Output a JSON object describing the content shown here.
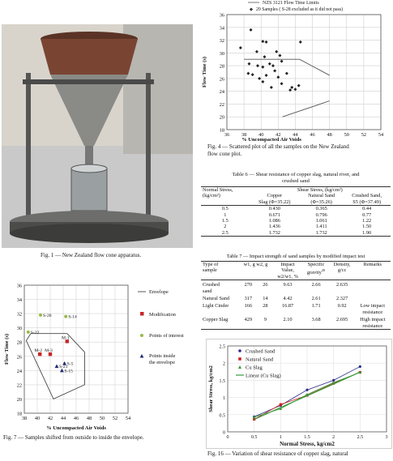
{
  "fig1": {
    "caption": "Fig. 1 — New Zealand flow cone apparatus."
  },
  "fig4": {
    "caption_line1": "Fig. 4 — Scattered plot of all the samples on the New Zealand",
    "caption_line2": "flow cone plot."
  },
  "fig7": {
    "caption": "Fig. 7 — Samples shifted from outside to inside the envelope."
  },
  "fig16": {
    "caption": "Fig. 16 — Variation of shear resistance of copper slag, natural"
  },
  "table6": {
    "title_line1": "Table 6 — Shear resistance of copper slag, natural river, and",
    "title_line2": "crushed sand",
    "col_normal": "Normal Stress,",
    "col_normal_unit": "(kg/cm²)",
    "col_group": "Shear Stress, (kg/cm²)",
    "col_copper": "Copper",
    "col_copper2": "Slag (Φ=35.22)",
    "col_natural": "Natural Sand",
    "col_natural2": "(Φ=35.26)",
    "col_crushed": "Crushed Sand,",
    "col_crushed2": "S5 (Φ=37.49)",
    "rows": [
      [
        "0.5",
        "0.430",
        "0.365",
        "0.44"
      ],
      [
        "1",
        "0.671",
        "0.796",
        "0.77"
      ],
      [
        "1.5",
        "1.086",
        "1.061",
        "1.22"
      ],
      [
        "2",
        "1.436",
        "1.411",
        "1.50"
      ],
      [
        "2.5",
        "1.732",
        "1.732",
        "1.90"
      ]
    ]
  },
  "table7": {
    "title": "Table 7 — Impact strength of sand samples by modified impact test",
    "h_type": "Type of",
    "h_type2": "sample",
    "h_w": "w1, g w2, g",
    "h_impact": "Impact",
    "h_impact2": "Value,",
    "h_impact3": "w2/w1, %",
    "h_sg": "Specific",
    "h_sg2": "gravity",
    "h_sg_sup": "20",
    "h_density": "Density,",
    "h_density2": "g/cc",
    "h_remarks": "Remarks",
    "rows": [
      {
        "type": "Crushed",
        "type2": "sand",
        "w1": "270",
        "w2": "26",
        "iv": "9.63",
        "sg": "2.66",
        "d": "2.635",
        "r": "",
        "r2": ""
      },
      {
        "type": "Natural Sand",
        "type2": "",
        "w1": "317",
        "w2": "14",
        "iv": "4.42",
        "sg": "2.61",
        "d": "2.327",
        "r": "",
        "r2": ""
      },
      {
        "type": "Light Cinder",
        "type2": "",
        "w1": "166",
        "w2": "28",
        "iv": "16.87",
        "sg": "1.71",
        "d": "0.92",
        "r": "Low impact",
        "r2": "resistance"
      },
      {
        "type": "Copper Slag",
        "type2": "",
        "w1": "429",
        "w2": "9",
        "iv": "2.10",
        "sg": "3.68",
        "d": "2.695",
        "r": "High impact",
        "r2": "resistance"
      }
    ]
  },
  "chart_data": [
    {
      "id": "fig4",
      "type": "scatter",
      "xlabel": "% Uncompacted Air Voids",
      "ylabel": "Flow Time (s)",
      "xlim": [
        36,
        54
      ],
      "ylim": [
        18,
        36
      ],
      "xticks": [
        "36",
        "38",
        "40",
        "42",
        "44",
        "46",
        "48",
        "50",
        "52",
        "54"
      ],
      "yticks": [
        "18",
        "20",
        "22",
        "24",
        "26",
        "28",
        "30",
        "32",
        "34",
        "36"
      ],
      "legend": [
        "NZS 3121 Flow Time Limits",
        "29 Samples ( S-28 excluded as it did not pass)"
      ],
      "envelope": {
        "upper": [
          [
            38,
            29
          ],
          [
            44.5,
            29
          ],
          [
            48,
            26.5
          ]
        ],
        "lower": [
          [
            42.5,
            20
          ],
          [
            48,
            22.5
          ]
        ]
      },
      "points": [
        [
          38.8,
          33.6
        ],
        [
          37.6,
          30.8
        ],
        [
          39.5,
          30.2
        ],
        [
          40.2,
          31.8
        ],
        [
          40.6,
          31.7
        ],
        [
          41.8,
          30.2
        ],
        [
          40.4,
          29.4
        ],
        [
          42.2,
          29.6
        ],
        [
          38.6,
          28.3
        ],
        [
          39.6,
          28.0
        ],
        [
          41.0,
          28.3
        ],
        [
          42.4,
          28.7
        ],
        [
          40.2,
          27.8
        ],
        [
          41.4,
          28.0
        ],
        [
          38.5,
          26.8
        ],
        [
          39.0,
          26.6
        ],
        [
          39.8,
          26.0
        ],
        [
          40.6,
          26.5
        ],
        [
          41.6,
          27.2
        ],
        [
          43.0,
          26.8
        ],
        [
          40.2,
          25.5
        ],
        [
          41.2,
          24.6
        ],
        [
          42.4,
          25.2
        ],
        [
          43.6,
          24.6
        ],
        [
          44.0,
          24.3
        ],
        [
          44.4,
          24.9
        ],
        [
          43.4,
          24.2
        ],
        [
          44.6,
          31.7
        ],
        [
          42.0,
          26.2
        ]
      ]
    },
    {
      "id": "fig7",
      "type": "scatter",
      "xlabel": "% Uncompacted  Air Voids",
      "ylabel": "Flow Time (s)",
      "xlim": [
        38,
        54
      ],
      "ylim": [
        18,
        36
      ],
      "xticks": [
        "38",
        "40",
        "42",
        "44",
        "46",
        "48",
        "50",
        "52",
        "54"
      ],
      "yticks": [
        "18",
        "20",
        "22",
        "24",
        "26",
        "28",
        "30",
        "32",
        "34",
        "36"
      ],
      "legend": [
        "Envelope",
        "Modification",
        "Points of interest",
        "Points inside the envelope"
      ],
      "envelope": [
        [
          38.3,
          28.2
        ],
        [
          39.0,
          29.2
        ],
        [
          44.6,
          29.2
        ],
        [
          47.3,
          26.6
        ],
        [
          47.3,
          22.0
        ],
        [
          42.5,
          20.0
        ]
      ],
      "points_of_interest": [
        {
          "label": "S-26",
          "x": 40.5,
          "y": 31.8
        },
        {
          "label": "S-14",
          "x": 44.4,
          "y": 31.6
        },
        {
          "label": "S-22",
          "x": 38.6,
          "y": 29.4
        }
      ],
      "modification": [
        {
          "label": "M-2",
          "x": 40.4,
          "y": 26.3
        },
        {
          "label": "M-3",
          "x": 42.0,
          "y": 26.3
        },
        {
          "label": "M-1",
          "x": 44.6,
          "y": 28.1
        }
      ],
      "inside": [
        {
          "label": "S-21",
          "x": 43.0,
          "y": 24.6
        },
        {
          "label": "S-5",
          "x": 44.2,
          "y": 25.0
        },
        {
          "label": "S-15",
          "x": 43.8,
          "y": 24.0
        }
      ]
    },
    {
      "id": "fig16",
      "type": "line",
      "xlabel": "Normal Stress, kg/cm2",
      "ylabel": "Shear Stress, kg/cm2",
      "x": [
        0.5,
        1,
        1.5,
        2,
        2.5
      ],
      "xlim": [
        0,
        3
      ],
      "ylim": [
        0,
        2.5
      ],
      "xticks": [
        "0",
        "0.5",
        "1",
        "1.5",
        "2",
        "2.5",
        "3"
      ],
      "yticks": [
        "0",
        "0.5",
        "1",
        "1.5",
        "2",
        "2.5"
      ],
      "series": [
        {
          "name": "Crushed Sand",
          "color": "#2b2b8a",
          "values": [
            0.44,
            0.77,
            1.22,
            1.5,
            1.9
          ]
        },
        {
          "name": "Natural Sand",
          "color": "#cc2222",
          "values": [
            0.365,
            0.796,
            1.061,
            1.411,
            1.732
          ]
        },
        {
          "name": "Cu Slag",
          "color": "#3a9a3a",
          "values": [
            0.43,
            0.671,
            1.086,
            1.436,
            1.732
          ]
        },
        {
          "name": "Linear (Cu Slag)",
          "color": "#3a9a3a",
          "values": [
            0.36,
            0.71,
            1.05,
            1.39,
            1.74
          ]
        }
      ]
    }
  ]
}
